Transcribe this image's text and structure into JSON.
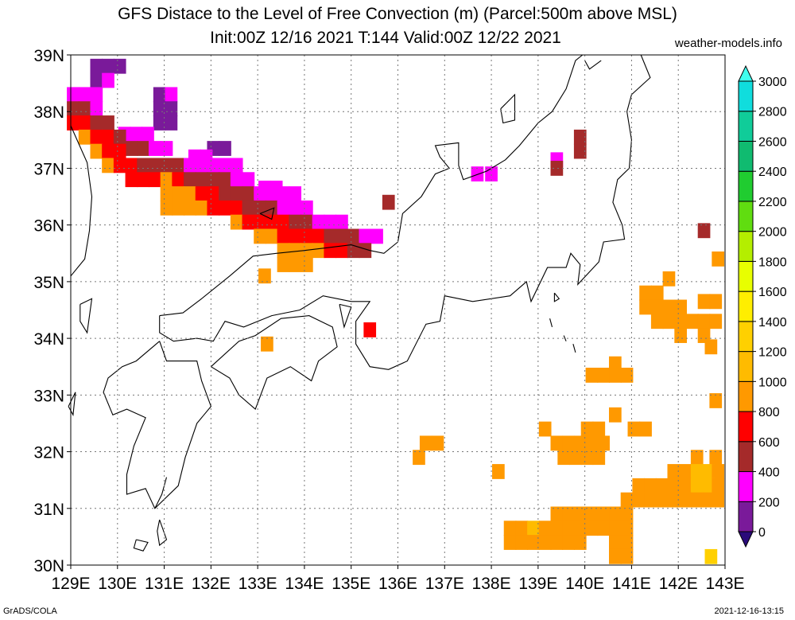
{
  "title": "GFS Distace to the Level of Free Convection (m) (Parcel:500m above MSL)",
  "subtitle": "Init:00Z 12/16 2021 T:144 Valid:00Z 12/22 2021",
  "site": "weather-models.info",
  "footer_left": "GrADS/COLA",
  "footer_right": "2021-12-16-13:15",
  "chart_data": {
    "type": "heatmap",
    "title": "GFS Distace to the Level of Free Convection (m) (Parcel:500m above MSL)",
    "xlim": [
      129,
      143
    ],
    "ylim": [
      30,
      39
    ],
    "xticks": [
      "129E",
      "130E",
      "131E",
      "132E",
      "133E",
      "134E",
      "135E",
      "136E",
      "137E",
      "138E",
      "139E",
      "140E",
      "141E",
      "142E",
      "143E"
    ],
    "yticks": [
      "30N",
      "31N",
      "32N",
      "33N",
      "34N",
      "35N",
      "36N",
      "37N",
      "38N",
      "39N"
    ],
    "grid": true,
    "colorbar": {
      "levels": [
        "0",
        "200",
        "400",
        "600",
        "800",
        "1000",
        "1200",
        "1400",
        "1600",
        "1800",
        "2000",
        "2200",
        "2400",
        "2600",
        "2800",
        "3000"
      ],
      "colors": [
        "#2a0a7a",
        "#7a1a9a",
        "#ff00ff",
        "#a52a2a",
        "#ff0000",
        "#ff9900",
        "#ffbb00",
        "#ffd000",
        "#ffee00",
        "#e8ff00",
        "#b4ee00",
        "#60dd10",
        "#20cc30",
        "#10bb70",
        "#10cc99",
        "#10dddd",
        "#40ffee"
      ]
    },
    "cells": [
      {
        "lon": 129.55,
        "lat": 38.8,
        "v": 100
      },
      {
        "lon": 129.8,
        "lat": 38.8,
        "v": 100
      },
      {
        "lon": 130.05,
        "lat": 38.8,
        "v": 100
      },
      {
        "lon": 129.55,
        "lat": 38.55,
        "v": 100
      },
      {
        "lon": 129.8,
        "lat": 38.55,
        "v": 200
      },
      {
        "lon": 130.9,
        "lat": 38.3,
        "v": 100
      },
      {
        "lon": 131.15,
        "lat": 38.3,
        "v": 200
      },
      {
        "lon": 129.05,
        "lat": 38.3,
        "v": 300
      },
      {
        "lon": 129.3,
        "lat": 38.3,
        "v": 200
      },
      {
        "lon": 129.55,
        "lat": 38.3,
        "v": 300
      },
      {
        "lon": 129.05,
        "lat": 38.05,
        "v": 500
      },
      {
        "lon": 129.3,
        "lat": 38.05,
        "v": 400
      },
      {
        "lon": 129.55,
        "lat": 38.05,
        "v": 300
      },
      {
        "lon": 130.9,
        "lat": 38.05,
        "v": 100
      },
      {
        "lon": 131.15,
        "lat": 38.05,
        "v": 100
      },
      {
        "lon": 129.05,
        "lat": 37.8,
        "v": 700
      },
      {
        "lon": 129.3,
        "lat": 37.8,
        "v": 600
      },
      {
        "lon": 129.55,
        "lat": 37.8,
        "v": 500
      },
      {
        "lon": 129.8,
        "lat": 37.8,
        "v": 400
      },
      {
        "lon": 130.9,
        "lat": 37.8,
        "v": 100
      },
      {
        "lon": 131.15,
        "lat": 37.8,
        "v": 100
      },
      {
        "lon": 130.15,
        "lat": 37.6,
        "v": 200
      },
      {
        "lon": 130.4,
        "lat": 37.6,
        "v": 200
      },
      {
        "lon": 130.65,
        "lat": 37.6,
        "v": 200
      },
      {
        "lon": 129.3,
        "lat": 37.55,
        "v": 800
      },
      {
        "lon": 129.55,
        "lat": 37.55,
        "v": 700
      },
      {
        "lon": 129.8,
        "lat": 37.55,
        "v": 600
      },
      {
        "lon": 130.05,
        "lat": 37.55,
        "v": 500
      },
      {
        "lon": 130.3,
        "lat": 37.35,
        "v": 400
      },
      {
        "lon": 130.55,
        "lat": 37.35,
        "v": 400
      },
      {
        "lon": 130.8,
        "lat": 37.35,
        "v": 300
      },
      {
        "lon": 131.05,
        "lat": 37.35,
        "v": 300
      },
      {
        "lon": 129.55,
        "lat": 37.3,
        "v": 800
      },
      {
        "lon": 129.8,
        "lat": 37.3,
        "v": 700
      },
      {
        "lon": 130.05,
        "lat": 37.3,
        "v": 600
      },
      {
        "lon": 132.05,
        "lat": 37.35,
        "v": 100
      },
      {
        "lon": 132.3,
        "lat": 37.35,
        "v": 100
      },
      {
        "lon": 131.65,
        "lat": 37.2,
        "v": 200
      },
      {
        "lon": 131.9,
        "lat": 37.2,
        "v": 200
      },
      {
        "lon": 129.8,
        "lat": 37.05,
        "v": 800
      },
      {
        "lon": 130.05,
        "lat": 37.05,
        "v": 700
      },
      {
        "lon": 130.3,
        "lat": 37.05,
        "v": 600
      },
      {
        "lon": 130.55,
        "lat": 37.05,
        "v": 500
      },
      {
        "lon": 130.8,
        "lat": 37.05,
        "v": 500
      },
      {
        "lon": 131.05,
        "lat": 37.05,
        "v": 400
      },
      {
        "lon": 131.3,
        "lat": 37.05,
        "v": 400
      },
      {
        "lon": 131.55,
        "lat": 37.05,
        "v": 300
      },
      {
        "lon": 131.8,
        "lat": 37.05,
        "v": 300
      },
      {
        "lon": 132.05,
        "lat": 37.05,
        "v": 300
      },
      {
        "lon": 132.3,
        "lat": 37.05,
        "v": 300
      },
      {
        "lon": 132.55,
        "lat": 37.05,
        "v": 200
      },
      {
        "lon": 130.3,
        "lat": 36.8,
        "v": 700
      },
      {
        "lon": 130.55,
        "lat": 36.8,
        "v": 600
      },
      {
        "lon": 130.8,
        "lat": 36.8,
        "v": 700
      },
      {
        "lon": 131.05,
        "lat": 36.8,
        "v": 800
      },
      {
        "lon": 131.3,
        "lat": 36.8,
        "v": 600
      },
      {
        "lon": 131.55,
        "lat": 36.8,
        "v": 500
      },
      {
        "lon": 131.8,
        "lat": 36.8,
        "v": 500
      },
      {
        "lon": 132.05,
        "lat": 36.8,
        "v": 400
      },
      {
        "lon": 132.3,
        "lat": 36.8,
        "v": 400
      },
      {
        "lon": 132.55,
        "lat": 36.8,
        "v": 300
      },
      {
        "lon": 132.8,
        "lat": 36.8,
        "v": 300
      },
      {
        "lon": 133.15,
        "lat": 36.65,
        "v": 200
      },
      {
        "lon": 133.4,
        "lat": 36.65,
        "v": 200
      },
      {
        "lon": 131.05,
        "lat": 36.55,
        "v": 800
      },
      {
        "lon": 131.3,
        "lat": 36.55,
        "v": 800
      },
      {
        "lon": 131.55,
        "lat": 36.55,
        "v": 800
      },
      {
        "lon": 131.8,
        "lat": 36.55,
        "v": 700
      },
      {
        "lon": 132.05,
        "lat": 36.55,
        "v": 600
      },
      {
        "lon": 132.3,
        "lat": 36.55,
        "v": 500
      },
      {
        "lon": 132.55,
        "lat": 36.55,
        "v": 400
      },
      {
        "lon": 132.8,
        "lat": 36.55,
        "v": 400
      },
      {
        "lon": 133.05,
        "lat": 36.55,
        "v": 300
      },
      {
        "lon": 133.3,
        "lat": 36.55,
        "v": 300
      },
      {
        "lon": 133.55,
        "lat": 36.55,
        "v": 300
      },
      {
        "lon": 133.8,
        "lat": 36.55,
        "v": 300
      },
      {
        "lon": 135.8,
        "lat": 36.4,
        "v": 500
      },
      {
        "lon": 131.05,
        "lat": 36.3,
        "v": 800
      },
      {
        "lon": 131.3,
        "lat": 36.3,
        "v": 800
      },
      {
        "lon": 131.55,
        "lat": 36.3,
        "v": 800
      },
      {
        "lon": 131.8,
        "lat": 36.3,
        "v": 800
      },
      {
        "lon": 132.05,
        "lat": 36.3,
        "v": 700
      },
      {
        "lon": 132.3,
        "lat": 36.3,
        "v": 700
      },
      {
        "lon": 132.55,
        "lat": 36.3,
        "v": 600
      },
      {
        "lon": 132.8,
        "lat": 36.3,
        "v": 500
      },
      {
        "lon": 133.05,
        "lat": 36.3,
        "v": 400
      },
      {
        "lon": 133.3,
        "lat": 36.3,
        "v": 400
      },
      {
        "lon": 133.55,
        "lat": 36.3,
        "v": 300
      },
      {
        "lon": 133.8,
        "lat": 36.3,
        "v": 300
      },
      {
        "lon": 134.05,
        "lat": 36.3,
        "v": 300
      },
      {
        "lon": 132.55,
        "lat": 36.05,
        "v": 800
      },
      {
        "lon": 132.8,
        "lat": 36.05,
        "v": 700
      },
      {
        "lon": 133.05,
        "lat": 36.05,
        "v": 700
      },
      {
        "lon": 133.3,
        "lat": 36.05,
        "v": 600
      },
      {
        "lon": 133.55,
        "lat": 36.05,
        "v": 600
      },
      {
        "lon": 133.8,
        "lat": 36.05,
        "v": 500
      },
      {
        "lon": 134.05,
        "lat": 36.05,
        "v": 400
      },
      {
        "lon": 134.3,
        "lat": 36.05,
        "v": 300
      },
      {
        "lon": 134.55,
        "lat": 36.05,
        "v": 300
      },
      {
        "lon": 134.8,
        "lat": 36.05,
        "v": 300
      },
      {
        "lon": 133.05,
        "lat": 35.8,
        "v": 800
      },
      {
        "lon": 133.3,
        "lat": 35.8,
        "v": 800
      },
      {
        "lon": 133.55,
        "lat": 35.8,
        "v": 700
      },
      {
        "lon": 133.8,
        "lat": 35.8,
        "v": 700
      },
      {
        "lon": 134.05,
        "lat": 35.8,
        "v": 700
      },
      {
        "lon": 134.3,
        "lat": 35.8,
        "v": 600
      },
      {
        "lon": 134.55,
        "lat": 35.8,
        "v": 500
      },
      {
        "lon": 134.8,
        "lat": 35.8,
        "v": 400
      },
      {
        "lon": 135.05,
        "lat": 35.8,
        "v": 400
      },
      {
        "lon": 135.3,
        "lat": 35.8,
        "v": 300
      },
      {
        "lon": 135.55,
        "lat": 35.8,
        "v": 300
      },
      {
        "lon": 133.55,
        "lat": 35.55,
        "v": 800
      },
      {
        "lon": 133.8,
        "lat": 35.55,
        "v": 800
      },
      {
        "lon": 134.05,
        "lat": 35.55,
        "v": 800
      },
      {
        "lon": 134.3,
        "lat": 35.55,
        "v": 800
      },
      {
        "lon": 134.55,
        "lat": 35.55,
        "v": 700
      },
      {
        "lon": 134.8,
        "lat": 35.55,
        "v": 600
      },
      {
        "lon": 135.05,
        "lat": 35.55,
        "v": 500
      },
      {
        "lon": 135.3,
        "lat": 35.55,
        "v": 500
      },
      {
        "lon": 133.55,
        "lat": 35.3,
        "v": 800
      },
      {
        "lon": 133.8,
        "lat": 35.3,
        "v": 800
      },
      {
        "lon": 134.05,
        "lat": 35.3,
        "v": 800
      },
      {
        "lon": 133.15,
        "lat": 35.1,
        "v": 900
      },
      {
        "lon": 138.0,
        "lat": 36.9,
        "v": 200
      },
      {
        "lon": 137.7,
        "lat": 36.9,
        "v": 200
      },
      {
        "lon": 139.9,
        "lat": 37.55,
        "v": 400
      },
      {
        "lon": 139.9,
        "lat": 37.3,
        "v": 500
      },
      {
        "lon": 139.4,
        "lat": 37.15,
        "v": 200
      },
      {
        "lon": 139.4,
        "lat": 37.0,
        "v": 500
      },
      {
        "lon": 142.55,
        "lat": 35.9,
        "v": 500
      },
      {
        "lon": 142.85,
        "lat": 35.4,
        "v": 900
      },
      {
        "lon": 135.4,
        "lat": 34.15,
        "v": 700
      },
      {
        "lon": 133.2,
        "lat": 33.9,
        "v": 800
      },
      {
        "lon": 141.3,
        "lat": 34.8,
        "v": 900
      },
      {
        "lon": 141.55,
        "lat": 34.8,
        "v": 900
      },
      {
        "lon": 141.8,
        "lat": 35.05,
        "v": 900
      },
      {
        "lon": 141.3,
        "lat": 34.55,
        "v": 900
      },
      {
        "lon": 141.55,
        "lat": 34.55,
        "v": 900
      },
      {
        "lon": 141.8,
        "lat": 34.55,
        "v": 900
      },
      {
        "lon": 142.05,
        "lat": 34.55,
        "v": 900
      },
      {
        "lon": 142.55,
        "lat": 34.65,
        "v": 900
      },
      {
        "lon": 142.8,
        "lat": 34.65,
        "v": 900
      },
      {
        "lon": 141.55,
        "lat": 34.3,
        "v": 900
      },
      {
        "lon": 141.8,
        "lat": 34.3,
        "v": 900
      },
      {
        "lon": 142.05,
        "lat": 34.3,
        "v": 900
      },
      {
        "lon": 142.3,
        "lat": 34.3,
        "v": 900
      },
      {
        "lon": 142.55,
        "lat": 34.3,
        "v": 900
      },
      {
        "lon": 142.8,
        "lat": 34.3,
        "v": 900
      },
      {
        "lon": 142.05,
        "lat": 34.05,
        "v": 900
      },
      {
        "lon": 142.55,
        "lat": 34.05,
        "v": 900
      },
      {
        "lon": 142.7,
        "lat": 33.85,
        "v": 900
      },
      {
        "lon": 140.65,
        "lat": 33.55,
        "v": 900
      },
      {
        "lon": 140.15,
        "lat": 33.35,
        "v": 900
      },
      {
        "lon": 140.4,
        "lat": 33.35,
        "v": 900
      },
      {
        "lon": 140.65,
        "lat": 33.35,
        "v": 900
      },
      {
        "lon": 140.9,
        "lat": 33.35,
        "v": 900
      },
      {
        "lon": 142.8,
        "lat": 32.9,
        "v": 900
      },
      {
        "lon": 140.65,
        "lat": 32.65,
        "v": 900
      },
      {
        "lon": 139.15,
        "lat": 32.4,
        "v": 900
      },
      {
        "lon": 140.05,
        "lat": 32.4,
        "v": 900
      },
      {
        "lon": 140.3,
        "lat": 32.4,
        "v": 900
      },
      {
        "lon": 141.05,
        "lat": 32.4,
        "v": 900
      },
      {
        "lon": 141.3,
        "lat": 32.4,
        "v": 900
      },
      {
        "lon": 136.6,
        "lat": 32.15,
        "v": 900
      },
      {
        "lon": 136.85,
        "lat": 32.15,
        "v": 900
      },
      {
        "lon": 139.4,
        "lat": 32.15,
        "v": 900
      },
      {
        "lon": 139.65,
        "lat": 32.15,
        "v": 900
      },
      {
        "lon": 139.9,
        "lat": 32.15,
        "v": 900
      },
      {
        "lon": 140.15,
        "lat": 32.15,
        "v": 900
      },
      {
        "lon": 140.4,
        "lat": 32.15,
        "v": 900
      },
      {
        "lon": 136.45,
        "lat": 31.9,
        "v": 900
      },
      {
        "lon": 139.55,
        "lat": 31.9,
        "v": 900
      },
      {
        "lon": 139.8,
        "lat": 31.9,
        "v": 900
      },
      {
        "lon": 140.05,
        "lat": 31.9,
        "v": 900
      },
      {
        "lon": 140.3,
        "lat": 31.9,
        "v": 900
      },
      {
        "lon": 142.4,
        "lat": 31.9,
        "v": 900
      },
      {
        "lon": 142.8,
        "lat": 31.9,
        "v": 900
      },
      {
        "lon": 138.15,
        "lat": 31.65,
        "v": 900
      },
      {
        "lon": 141.9,
        "lat": 31.65,
        "v": 900
      },
      {
        "lon": 142.15,
        "lat": 31.65,
        "v": 900
      },
      {
        "lon": 142.4,
        "lat": 31.65,
        "v": 1000
      },
      {
        "lon": 142.65,
        "lat": 31.65,
        "v": 1000
      },
      {
        "lon": 142.85,
        "lat": 31.65,
        "v": 900
      },
      {
        "lon": 141.15,
        "lat": 31.4,
        "v": 900
      },
      {
        "lon": 141.4,
        "lat": 31.4,
        "v": 900
      },
      {
        "lon": 141.65,
        "lat": 31.4,
        "v": 900
      },
      {
        "lon": 141.9,
        "lat": 31.4,
        "v": 900
      },
      {
        "lon": 142.15,
        "lat": 31.4,
        "v": 900
      },
      {
        "lon": 142.4,
        "lat": 31.4,
        "v": 1000
      },
      {
        "lon": 142.65,
        "lat": 31.4,
        "v": 1000
      },
      {
        "lon": 142.85,
        "lat": 31.4,
        "v": 900
      },
      {
        "lon": 140.9,
        "lat": 31.15,
        "v": 900
      },
      {
        "lon": 141.15,
        "lat": 31.15,
        "v": 900
      },
      {
        "lon": 141.4,
        "lat": 31.15,
        "v": 900
      },
      {
        "lon": 141.65,
        "lat": 31.15,
        "v": 900
      },
      {
        "lon": 141.9,
        "lat": 31.15,
        "v": 900
      },
      {
        "lon": 142.15,
        "lat": 31.15,
        "v": 900
      },
      {
        "lon": 142.4,
        "lat": 31.15,
        "v": 900
      },
      {
        "lon": 142.65,
        "lat": 31.15,
        "v": 900
      },
      {
        "lon": 142.85,
        "lat": 31.15,
        "v": 900
      },
      {
        "lon": 139.4,
        "lat": 30.9,
        "v": 900
      },
      {
        "lon": 139.65,
        "lat": 30.9,
        "v": 900
      },
      {
        "lon": 139.9,
        "lat": 30.9,
        "v": 900
      },
      {
        "lon": 140.15,
        "lat": 30.9,
        "v": 900
      },
      {
        "lon": 140.4,
        "lat": 30.9,
        "v": 900
      },
      {
        "lon": 140.65,
        "lat": 30.9,
        "v": 900
      },
      {
        "lon": 140.9,
        "lat": 30.9,
        "v": 900
      },
      {
        "lon": 138.4,
        "lat": 30.65,
        "v": 900
      },
      {
        "lon": 138.65,
        "lat": 30.65,
        "v": 900
      },
      {
        "lon": 138.9,
        "lat": 30.65,
        "v": 1000
      },
      {
        "lon": 139.15,
        "lat": 30.65,
        "v": 900
      },
      {
        "lon": 139.4,
        "lat": 30.65,
        "v": 900
      },
      {
        "lon": 139.65,
        "lat": 30.65,
        "v": 900
      },
      {
        "lon": 139.9,
        "lat": 30.65,
        "v": 900
      },
      {
        "lon": 140.15,
        "lat": 30.65,
        "v": 900
      },
      {
        "lon": 140.4,
        "lat": 30.65,
        "v": 900
      },
      {
        "lon": 140.65,
        "lat": 30.65,
        "v": 900
      },
      {
        "lon": 140.9,
        "lat": 30.65,
        "v": 900
      },
      {
        "lon": 138.4,
        "lat": 30.4,
        "v": 900
      },
      {
        "lon": 138.65,
        "lat": 30.4,
        "v": 900
      },
      {
        "lon": 138.9,
        "lat": 30.4,
        "v": 900
      },
      {
        "lon": 139.15,
        "lat": 30.4,
        "v": 900
      },
      {
        "lon": 139.4,
        "lat": 30.4,
        "v": 900
      },
      {
        "lon": 139.65,
        "lat": 30.4,
        "v": 900
      },
      {
        "lon": 139.9,
        "lat": 30.4,
        "v": 900
      },
      {
        "lon": 140.65,
        "lat": 30.4,
        "v": 900
      },
      {
        "lon": 140.9,
        "lat": 30.4,
        "v": 900
      },
      {
        "lon": 140.65,
        "lat": 30.15,
        "v": 900
      },
      {
        "lon": 140.9,
        "lat": 30.15,
        "v": 900
      },
      {
        "lon": 142.7,
        "lat": 30.15,
        "v": 1200
      }
    ]
  }
}
